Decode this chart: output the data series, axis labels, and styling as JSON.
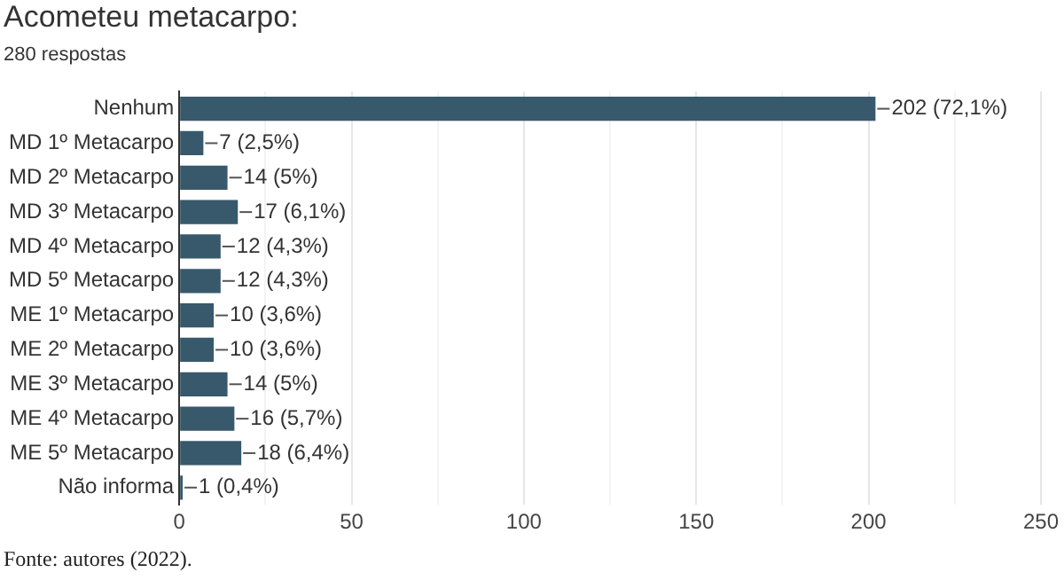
{
  "chart_data": {
    "type": "bar",
    "orientation": "horizontal",
    "title": "Acometeu metacarpo:",
    "subtitle": "280 respostas",
    "categories": [
      "Nenhum",
      "MD 1º Metacarpo",
      "MD 2º Metacarpo",
      "MD 3º Metacarpo",
      "MD 4º Metacarpo",
      "MD 5º Metacarpo",
      "ME 1º Metacarpo",
      "ME 2º Metacarpo",
      "ME 3º Metacarpo",
      "ME 4º Metacarpo",
      "ME 5º Metacarpo",
      "Não informa"
    ],
    "values": [
      202,
      7,
      14,
      17,
      12,
      12,
      10,
      10,
      14,
      16,
      18,
      1
    ],
    "value_labels": [
      "202 (72,1%)",
      "7 (2,5%)",
      "14 (5%)",
      "17 (6,1%)",
      "12 (4,3%)",
      "12 (4,3%)",
      "10 (3,6%)",
      "10 (3,6%)",
      "14 (5%)",
      "16 (5,7%)",
      "18 (6,4%)",
      "1 (0,4%)"
    ],
    "color": "#37596b",
    "xlim": [
      0,
      250
    ],
    "xticks": [
      0,
      {
        "value": 25,
        "label": null
      },
      50,
      {
        "value": 75,
        "label": null
      },
      100,
      {
        "value": 125,
        "label": null
      },
      150,
      {
        "value": 175,
        "label": null
      },
      200,
      {
        "value": 225,
        "label": null
      },
      250
    ],
    "grid": "x",
    "legend": false,
    "annotations": [
      "Fonte: autores (2022)."
    ]
  }
}
